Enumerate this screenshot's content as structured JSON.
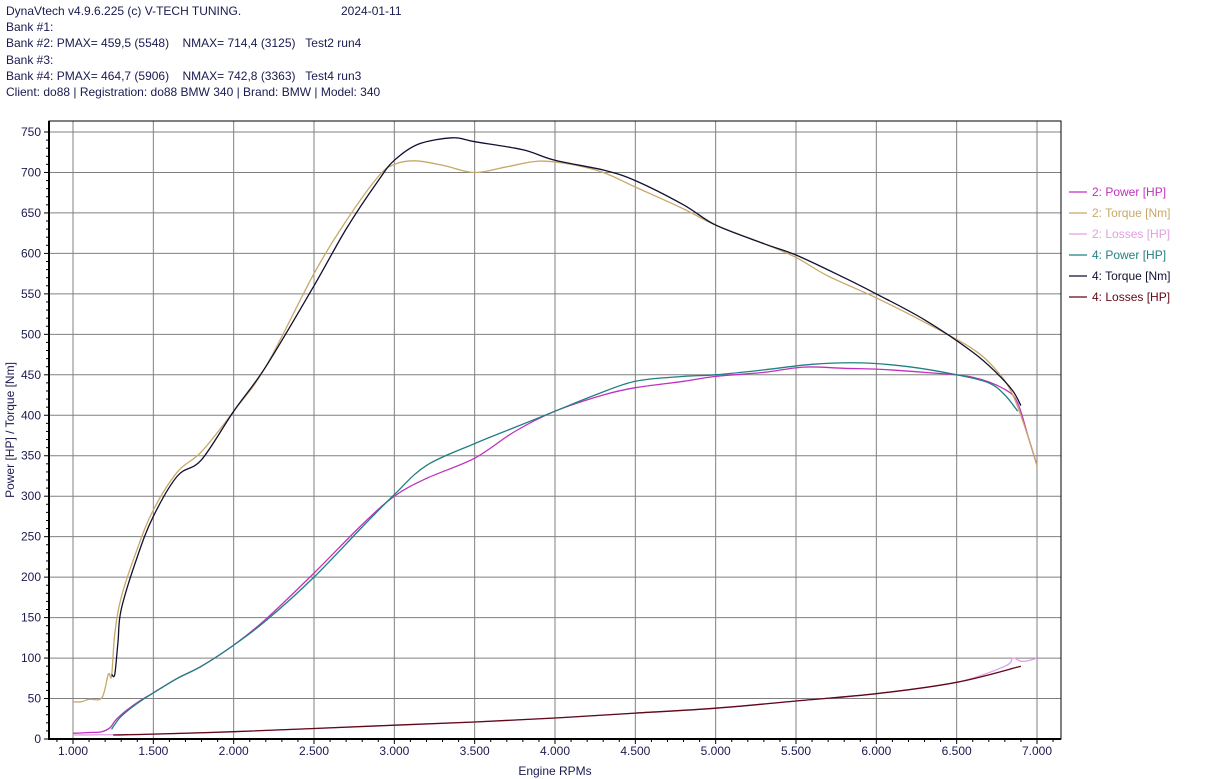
{
  "header": {
    "line1": "DynaVtech v4.9.6.225 (c) V-TECH TUNING.",
    "date": "2024-01-11",
    "bank1": "Bank #1:",
    "bank2": "Bank #2: PMAX= 459,5 (5548)    NMAX= 714,4 (3125)   Test2 run4",
    "bank3": "Bank #3:",
    "bank4": "Bank #4: PMAX= 464,7 (5906)    NMAX= 742,8 (3363)   Test4 run3",
    "client": "Client: do88 | Registration: do88 BMW 340 | Brand: BMW | Model: 340"
  },
  "chart_data": {
    "type": "line",
    "title": "",
    "xlabel": "Engine RPMs",
    "ylabel": "Power [HP] / Torque [Nm]",
    "xlim": [
      850,
      7150
    ],
    "ylim": [
      0,
      760
    ],
    "grid": true,
    "legend_position": "right",
    "x_ticks": [
      1000,
      1500,
      2000,
      2500,
      3000,
      3500,
      4000,
      4500,
      5000,
      5500,
      6000,
      6500,
      7000
    ],
    "x_tick_labels": [
      "1.000",
      "1.500",
      "2.000",
      "2.500",
      "3.000",
      "3.500",
      "4.000",
      "4.500",
      "5.000",
      "5.500",
      "6.000",
      "6.500",
      "7.000"
    ],
    "y_ticks": [
      0,
      50,
      100,
      150,
      200,
      250,
      300,
      350,
      400,
      450,
      500,
      550,
      600,
      650,
      700,
      750
    ],
    "series": [
      {
        "name": "2: Power [HP]",
        "color": "#c030c0",
        "x": [
          1000,
          1100,
          1180,
          1230,
          1260,
          1300,
          1400,
          1500,
          1650,
          1800,
          2000,
          2200,
          2500,
          2800,
          3000,
          3200,
          3500,
          3750,
          4000,
          4300,
          4500,
          4800,
          5000,
          5300,
          5548,
          5800,
          6000,
          6300,
          6600,
          6800,
          6880,
          6950,
          7000
        ],
        "values": [
          7,
          8,
          9,
          14,
          22,
          30,
          45,
          57,
          75,
          90,
          116,
          148,
          205,
          265,
          300,
          322,
          347,
          380,
          405,
          425,
          434,
          442,
          448,
          453,
          459.5,
          458,
          457,
          453,
          447,
          432,
          415,
          370,
          338
        ]
      },
      {
        "name": "2: Torque [Nm]",
        "color": "#c8a868",
        "x": [
          1000,
          1050,
          1100,
          1180,
          1220,
          1240,
          1260,
          1300,
          1400,
          1500,
          1650,
          1800,
          2000,
          2200,
          2500,
          2700,
          2900,
          3000,
          3125,
          3300,
          3500,
          3700,
          3900,
          4100,
          4300,
          4500,
          4800,
          5000,
          5300,
          5500,
          5700,
          6000,
          6300,
          6600,
          6750,
          6850,
          6950,
          7000
        ],
        "values": [
          46,
          46,
          49,
          51,
          80,
          78,
          130,
          175,
          235,
          283,
          330,
          355,
          405,
          460,
          575,
          640,
          695,
          710,
          714.4,
          709,
          700,
          707,
          714,
          710,
          700,
          682,
          655,
          635,
          612,
          595,
          572,
          545,
          515,
          482,
          455,
          425,
          370,
          338
        ]
      },
      {
        "name": "2: Losses [HP]",
        "color": "#e0a0e0",
        "x": [
          1000,
          1500,
          2000,
          2500,
          3000,
          3500,
          4000,
          4500,
          5000,
          5500,
          6000,
          6500,
          6800,
          6850,
          6900,
          6950,
          7000
        ],
        "values": [
          5,
          6,
          9,
          13,
          17,
          21,
          26,
          32,
          38,
          47,
          56,
          70,
          90,
          100,
          96,
          97,
          100
        ]
      },
      {
        "name": "4: Power [HP]",
        "color": "#208080",
        "x": [
          1240,
          1260,
          1300,
          1400,
          1500,
          1650,
          1800,
          2000,
          2200,
          2500,
          2800,
          3000,
          3200,
          3500,
          3750,
          4000,
          4250,
          4500,
          4800,
          5000,
          5300,
          5600,
          5906,
          6200,
          6500,
          6700,
          6800,
          6880
        ],
        "values": [
          12,
          18,
          28,
          44,
          57,
          75,
          90,
          116,
          146,
          200,
          262,
          302,
          338,
          365,
          385,
          405,
          425,
          442,
          448,
          450,
          456,
          463,
          464.7,
          460,
          450,
          440,
          425,
          405
        ]
      },
      {
        "name": "4: Torque [Nm]",
        "color": "#101030",
        "x": [
          1240,
          1260,
          1280,
          1300,
          1400,
          1500,
          1650,
          1800,
          2000,
          2200,
          2500,
          2700,
          2900,
          3000,
          3150,
          3363,
          3500,
          3800,
          4000,
          4300,
          4500,
          4800,
          5000,
          5300,
          5500,
          5800,
          6000,
          6300,
          6600,
          6750,
          6850,
          6900
        ],
        "values": [
          80,
          80,
          120,
          160,
          225,
          275,
          325,
          345,
          405,
          460,
          560,
          630,
          690,
          715,
          735,
          742.8,
          738,
          728,
          715,
          703,
          690,
          660,
          635,
          612,
          598,
          570,
          550,
          518,
          478,
          452,
          430,
          412
        ]
      },
      {
        "name": "4: Losses [HP]",
        "color": "#600818",
        "x": [
          1250,
          1500,
          2000,
          2500,
          3000,
          3500,
          4000,
          4500,
          5000,
          5500,
          6000,
          6500,
          6900
        ],
        "values": [
          5,
          6,
          9,
          13,
          17,
          21,
          26,
          32,
          38,
          47,
          56,
          70,
          90
        ]
      }
    ]
  }
}
